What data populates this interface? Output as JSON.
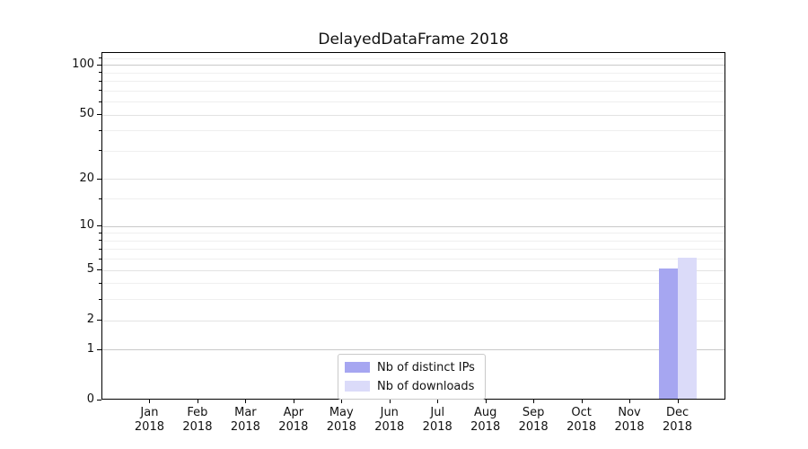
{
  "chart_data": {
    "type": "bar",
    "title": "DelayedDataFrame 2018",
    "yscale": "log1p",
    "ylim": [
      0,
      119
    ],
    "yticks": [
      0,
      1,
      2,
      5,
      10,
      20,
      50,
      100
    ],
    "minor_yticks": [
      3,
      4,
      6,
      7,
      8,
      9,
      15,
      30,
      40,
      60,
      70,
      80,
      90,
      110
    ],
    "decade_ticks": [
      1,
      10,
      100
    ],
    "categories": [
      {
        "month": "Jan",
        "year": "2018"
      },
      {
        "month": "Feb",
        "year": "2018"
      },
      {
        "month": "Mar",
        "year": "2018"
      },
      {
        "month": "Apr",
        "year": "2018"
      },
      {
        "month": "May",
        "year": "2018"
      },
      {
        "month": "Jun",
        "year": "2018"
      },
      {
        "month": "Jul",
        "year": "2018"
      },
      {
        "month": "Aug",
        "year": "2018"
      },
      {
        "month": "Sep",
        "year": "2018"
      },
      {
        "month": "Oct",
        "year": "2018"
      },
      {
        "month": "Nov",
        "year": "2018"
      },
      {
        "month": "Dec",
        "year": "2018"
      }
    ],
    "series": [
      {
        "key": "distinct-ips",
        "name": "Nb of distinct IPs",
        "color": "#a6a6f1",
        "values": [
          0,
          0,
          0,
          0,
          0,
          0,
          0,
          0,
          0,
          0,
          0,
          5
        ]
      },
      {
        "key": "downloads",
        "name": "Nb of downloads",
        "color": "#dbdbf9",
        "values": [
          0,
          0,
          0,
          0,
          0,
          0,
          0,
          0,
          0,
          0,
          0,
          6
        ]
      }
    ],
    "legend": {
      "position": "lower-center"
    },
    "colors": {
      "grid_decade": "#c9c9c9",
      "grid_major": "#e3e3e3",
      "grid_minor": "#efefef",
      "axis": "#000000",
      "background": "#ffffff"
    }
  }
}
